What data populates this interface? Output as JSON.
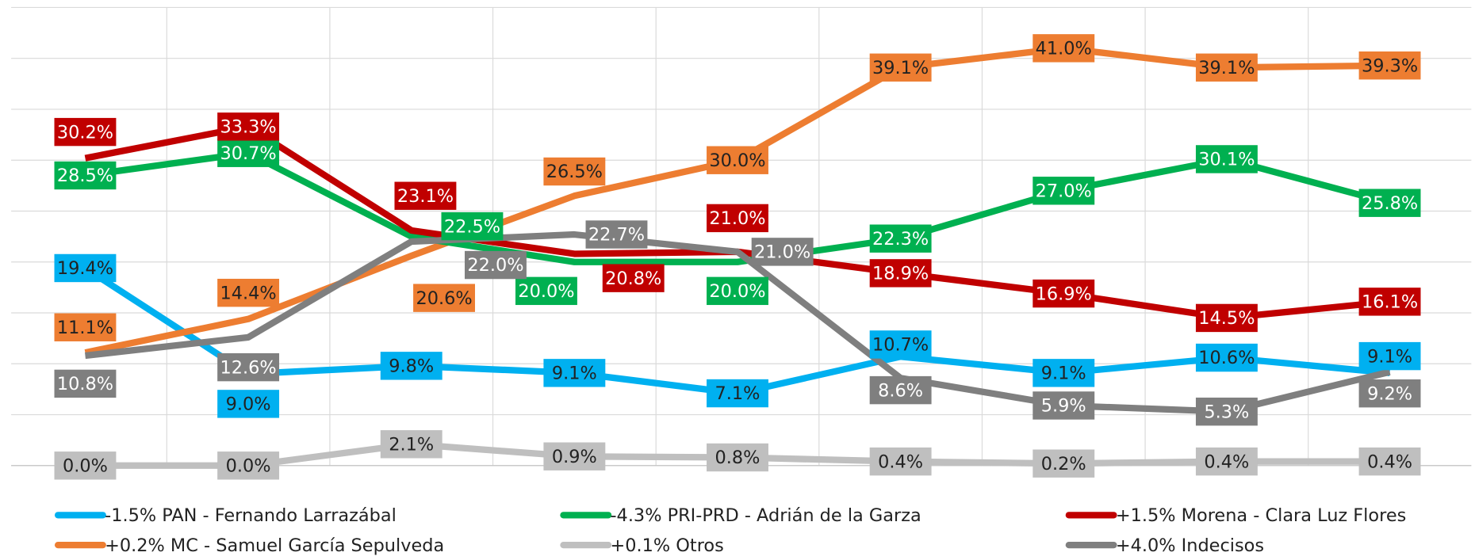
{
  "chart_data": {
    "type": "line",
    "categories": [
      null,
      null,
      null,
      null,
      null,
      null,
      null,
      null,
      null
    ],
    "ylim": [
      0,
      45
    ],
    "yticks": [
      0,
      5,
      10,
      15,
      20,
      25,
      30,
      35,
      40,
      45
    ],
    "grid": true,
    "series": [
      {
        "name": "-1.5% PAN - Fernando Larrazábal",
        "color": "#00b0f0",
        "values": [
          19.4,
          9.0,
          9.8,
          9.1,
          7.1,
          10.7,
          9.1,
          10.6,
          9.1
        ],
        "value_labels": [
          "19.4%",
          "9.0%",
          "9.8%",
          "9.1%",
          "7.1%",
          "10.7%",
          "9.1%",
          "10.6%",
          "9.1%"
        ]
      },
      {
        "name": "-4.3% PRI-PRD - Adrián de la Garza",
        "color": "#00b050",
        "values": [
          28.5,
          30.7,
          22.5,
          20.0,
          20.0,
          22.3,
          27.0,
          30.1,
          25.8
        ],
        "value_labels": [
          "28.5%",
          "30.7%",
          "22.5%",
          "20.0%",
          "20.0%",
          "22.3%",
          "27.0%",
          "30.1%",
          "25.8%"
        ]
      },
      {
        "name": "+1.5% Morena - Clara Luz Flores",
        "color": "#c00000",
        "values": [
          30.2,
          33.3,
          23.1,
          20.8,
          21.0,
          18.9,
          16.9,
          14.5,
          16.1
        ],
        "value_labels": [
          "30.2%",
          "33.3%",
          "23.1%",
          "20.8%",
          "21.0%",
          "18.9%",
          "16.9%",
          "14.5%",
          "16.1%"
        ]
      },
      {
        "name": "+0.2% MC - Samuel García Sepulveda",
        "color": "#ed7d31",
        "values": [
          11.1,
          14.4,
          20.6,
          26.5,
          30.0,
          39.1,
          41.0,
          39.1,
          39.3
        ],
        "value_labels": [
          "11.1%",
          "14.4%",
          "20.6%",
          "26.5%",
          "30.0%",
          "39.1%",
          "41.0%",
          "39.1%",
          "39.3%"
        ]
      },
      {
        "name": "+0.1% Otros",
        "color": "#bfbfbf",
        "values": [
          0.0,
          0.0,
          2.1,
          0.9,
          0.8,
          0.4,
          0.2,
          0.4,
          0.4
        ],
        "value_labels": [
          "0.0%",
          "0.0%",
          "2.1%",
          "0.9%",
          "0.8%",
          "0.4%",
          "0.2%",
          "0.4%",
          "0.4%"
        ]
      },
      {
        "name": "+4.0% Indecisos",
        "color": "#7f7f7f",
        "values": [
          10.8,
          12.6,
          22.0,
          22.7,
          21.0,
          8.6,
          5.9,
          5.3,
          9.2
        ],
        "value_labels": [
          "10.8%",
          "12.6%",
          "22.0%",
          "22.7%",
          "21.0%",
          "8.6%",
          "5.9%",
          "5.3%",
          "9.2%"
        ]
      }
    ]
  }
}
